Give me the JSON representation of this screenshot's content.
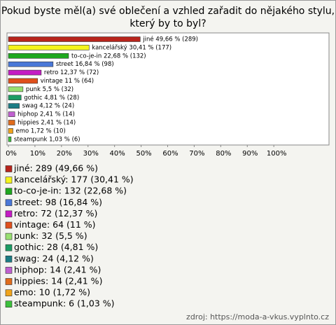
{
  "chart_data": {
    "type": "hbar",
    "title": [
      "Pokud byste měl(a) své oblečení a vzhled zařadit do nějakého stylu,",
      "který by to byl?"
    ],
    "categories": [
      "jiné",
      "kancelářský",
      "to-co-je-in",
      "street",
      "retro",
      "vintage",
      "punk",
      "gothic",
      "swag",
      "hiphop",
      "hippies",
      "emo",
      "steampunk"
    ],
    "values": [
      49.66,
      30.41,
      22.68,
      16.84,
      12.37,
      11,
      5.5,
      4.81,
      4.12,
      2.41,
      2.41,
      1.72,
      1.03
    ],
    "value_labels": [
      "jiné 49,66 % (289)",
      "kancelářský 30,41 % (177)",
      "to-co-je-in 22,68 % (132)",
      "street 16,84 % (98)",
      "retro 12,37 % (72)",
      "vintage 11 % (64)",
      "punk 5,5 % (32)",
      "gothic 4,81 % (28)",
      "swag 4,12 % (24)",
      "hiphop 2,41 % (14)",
      "hippies 2,41 % (14)",
      "emo 1,72 % (10)",
      "steampunk 1,03 % (6)"
    ],
    "colors": [
      "#b8241c",
      "#f4f41c",
      "#1fa81f",
      "#4a78d8",
      "#c41cc4",
      "#e0501c",
      "#98e070",
      "#1c9c64",
      "#1c7c84",
      "#c060d0",
      "#e06c1c",
      "#f0a41c",
      "#3cc03c"
    ],
    "legend_labels": [
      "jiné: 289 (49,66 %)",
      "kancelářský: 177 (30,41 %)",
      "to-co-je-in: 132 (22,68 %)",
      "street: 98 (16,84 %)",
      "retro: 72 (12,37 %)",
      "vintage: 64 (11 %)",
      "punk: 32 (5,5 %)",
      "gothic: 28 (4,81 %)",
      "swag: 24 (4,12 %)",
      "hiphop: 14 (2,41 %)",
      "hippies: 14 (2,41 %)",
      "emo: 10 (1,72 %)",
      "steampunk: 6 (1,03 %)"
    ],
    "xlim": [
      0,
      120
    ],
    "xticks": [
      {
        "value": 0,
        "label": "0%"
      },
      {
        "value": 10,
        "label": "10%"
      },
      {
        "value": 20,
        "label": "20%"
      },
      {
        "value": 30,
        "label": "30%"
      },
      {
        "value": 40,
        "label": "40%"
      },
      {
        "value": 50,
        "label": "50%"
      },
      {
        "value": 60,
        "label": "60%"
      },
      {
        "value": 70,
        "label": "70%"
      },
      {
        "value": 80,
        "label": "80%"
      },
      {
        "value": 90,
        "label": "90%"
      },
      {
        "value": 100,
        "label": "100%"
      }
    ],
    "source": "zdroj: https://moda-a-vkus.vyplnto.cz"
  }
}
